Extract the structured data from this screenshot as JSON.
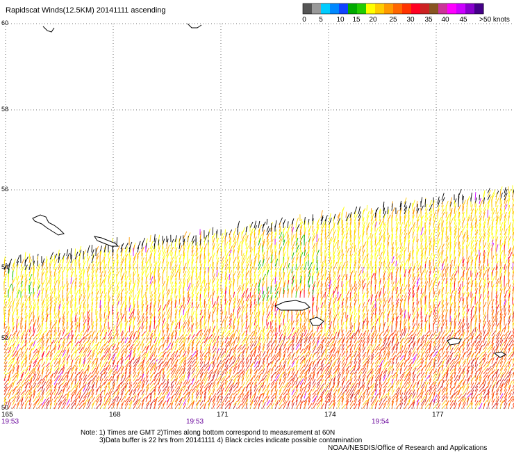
{
  "title": "Rapidscat Winds(12.5KM) 20141111 ascending",
  "color_scale": {
    "colors": [
      "#555555",
      "#999999",
      "#00ccff",
      "#0088ff",
      "#1144ff",
      "#00aa00",
      "#22cc00",
      "#ffff00",
      "#ffcc00",
      "#ff9900",
      "#ff6600",
      "#ff3300",
      "#ff0022",
      "#cc2222",
      "#885522",
      "#cc3399",
      "#ff00ff",
      "#cc00ff",
      "#8800cc",
      "#440088"
    ],
    "labels": [
      "0",
      "5",
      "10",
      "15",
      "20",
      "25",
      "30",
      "35",
      "40",
      "45",
      ">50 knots"
    ]
  },
  "lat_labels": [
    "60",
    "58",
    "56",
    "54",
    "52",
    "50"
  ],
  "lon_labels": [
    "165",
    "168",
    "171",
    "174",
    "177"
  ],
  "time_labels": [
    "19:53",
    "19:53",
    "19:54"
  ],
  "time_color": "#660099",
  "notes": {
    "line1": "Note: 1) Times are GMT 2)Times along bottom correspond to measurement at 60N",
    "line2": "3)Data buffer is 22 hrs from 20141111 4) Black circles indicate possible contamination",
    "credit": "NOAA/NESDIS/Office of Research and Applications"
  }
}
